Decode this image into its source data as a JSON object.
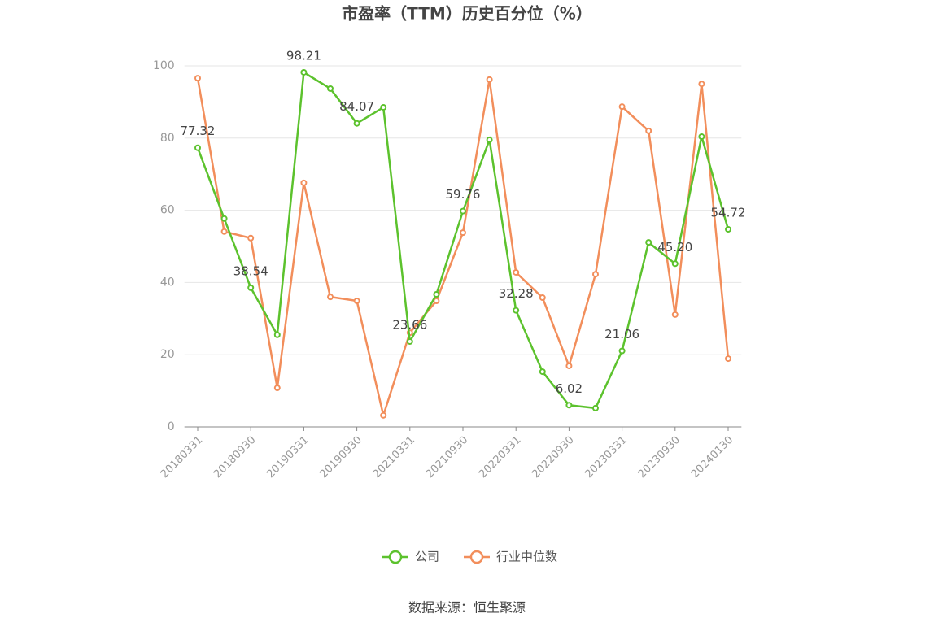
{
  "chart_data": {
    "type": "line",
    "title": "市盈率（TTM）历史百分位（%）",
    "source": "数据来源：恒生聚源",
    "categories": [
      "20180331",
      null,
      "20180930",
      null,
      "20190331",
      null,
      "20190930",
      null,
      "20210331",
      null,
      "20210930",
      null,
      "20220331",
      null,
      "20220930",
      null,
      "20230331",
      null,
      "20230930",
      null,
      "20240130"
    ],
    "series": [
      {
        "name": "公司",
        "color": "#5cc22d",
        "values": [
          77.32,
          57.7,
          38.54,
          25.5,
          98.21,
          93.7,
          84.07,
          88.5,
          23.66,
          36.7,
          59.76,
          79.5,
          32.28,
          15.3,
          6.02,
          5.2,
          21.06,
          51.1,
          45.2,
          80.4,
          54.72
        ],
        "value_labels": [
          "77.32",
          null,
          "38.54",
          null,
          "98.21",
          null,
          "84.07",
          null,
          "23.66",
          null,
          "59.76",
          null,
          "32.28",
          null,
          "6.02",
          null,
          "21.06",
          null,
          "45.20",
          null,
          "54.72"
        ]
      },
      {
        "name": "行业中位数",
        "color": "#f28e5b",
        "values": [
          96.6,
          54.1,
          52.3,
          10.8,
          67.6,
          36.0,
          34.9,
          3.2,
          26.1,
          34.9,
          53.8,
          96.2,
          42.8,
          35.8,
          16.9,
          42.3,
          88.7,
          82.0,
          31.1,
          95.0,
          18.9
        ]
      }
    ],
    "ylim": [
      0,
      100
    ],
    "yticks": [
      0,
      20,
      40,
      60,
      80,
      100
    ],
    "grid": true,
    "legend": "bottom"
  }
}
